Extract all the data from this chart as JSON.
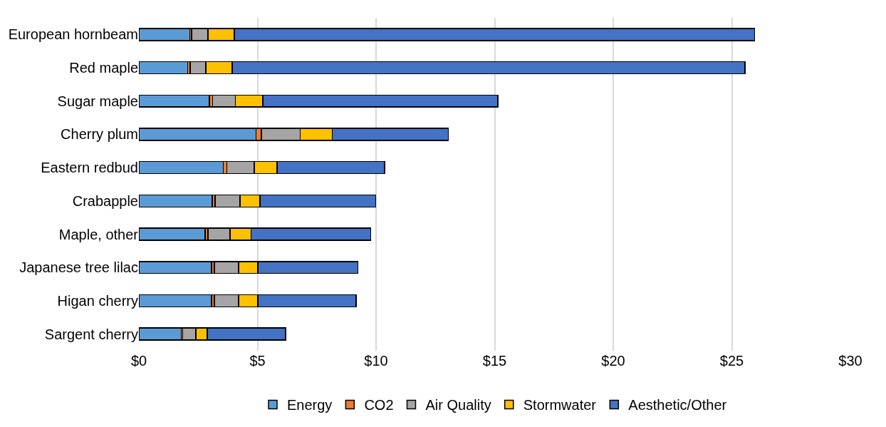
{
  "chart_data": {
    "type": "bar",
    "orientation": "horizontal",
    "stacked": true,
    "categories": [
      "European hornbeam",
      "Red maple",
      "Sugar maple",
      "Cherry plum",
      "Eastern redbud",
      "Crabapple",
      "Maple, other",
      "Japanese tree lilac",
      "Higan cherry",
      "Sargent cherry"
    ],
    "series": [
      {
        "name": "Energy",
        "color": "#5b9bd5",
        "values": [
          2.14,
          2.06,
          2.98,
          4.94,
          3.56,
          3.09,
          2.8,
          3.06,
          3.06,
          1.79
        ]
      },
      {
        "name": "CO2",
        "color": "#ed7d31",
        "values": [
          0.08,
          0.1,
          0.13,
          0.22,
          0.15,
          0.12,
          0.11,
          0.12,
          0.12,
          0.06
        ]
      },
      {
        "name": "Air Quality",
        "color": "#a5a5a5",
        "values": [
          0.69,
          0.66,
          0.96,
          1.64,
          1.16,
          1.05,
          0.93,
          1.02,
          1.02,
          0.55
        ]
      },
      {
        "name": "Stormwater",
        "color": "#ffc000",
        "values": [
          1.12,
          1.12,
          1.15,
          1.36,
          0.96,
          0.85,
          0.89,
          0.81,
          0.82,
          0.48
        ]
      },
      {
        "name": "Aesthetic/Other",
        "color": "#4472c4",
        "values": [
          21.93,
          21.61,
          9.92,
          4.89,
          4.53,
          4.88,
          5.04,
          4.22,
          4.14,
          3.31
        ]
      }
    ],
    "xlim": [
      0,
      30
    ],
    "xticks": [
      {
        "value": 0,
        "label": "$0"
      },
      {
        "value": 5,
        "label": "$5"
      },
      {
        "value": 10,
        "label": "$10"
      },
      {
        "value": 15,
        "label": "$15"
      },
      {
        "value": 20,
        "label": "$20"
      },
      {
        "value": 25,
        "label": "$25"
      },
      {
        "value": 30,
        "label": "$30"
      }
    ],
    "grid": "x",
    "legend": "bottom"
  }
}
